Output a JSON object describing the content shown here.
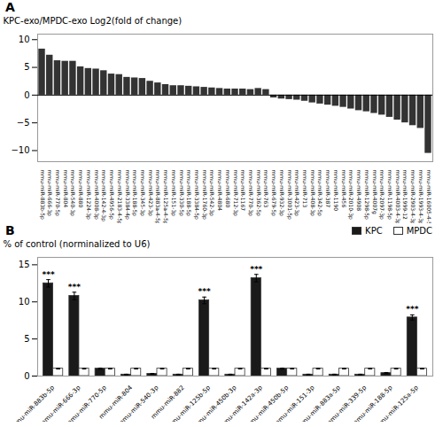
{
  "chart_data": [
    {
      "type": "bar",
      "title": "A",
      "categories": [
        "mmu-miR-883b-5p",
        "mmu-miR-666-3p",
        "mmu-miR-770-5p",
        "mmu-miR-804",
        "mmu-miR-540-3p",
        "mmu-miR-880",
        "mmu-miR-1224-3p",
        "mmu-miR-4008-3p",
        "mmu-miR-142-4-3p",
        "mmu-miR-4956-5p",
        "mmu-miR-2183-4-5p",
        "mmu-miR-3384-4p",
        "mmu-miR-188-5p",
        "mmu-miR-345-3p",
        "mmu-miR-423-3p",
        "mmu-miR-883a-4-5p",
        "mmu-miR-125a-4-5p",
        "mmu-miR-151-3p",
        "mmu-miR-330-5p",
        "mmu-miR-188-5p",
        "mmu-miR-3384-5p",
        "mmu-miR-1760-3p",
        "mmu-miR-542-3p",
        "mmu-miR-4804",
        "mmu-miR-680",
        "mmu-miR-712-3p",
        "mmu-miR-1167",
        "mmu-miR-770-3p",
        "mmu-miR-362-5p",
        "mmu-miR-763",
        "mmu-miR-679-5p",
        "mmu-miR-932-3p",
        "mmu-miR-3001-5p",
        "mmu-miR-423-3p",
        "mmu-miR-713",
        "mmu-miR-408-3p",
        "mmu-miR-342-5p",
        "mmu-miR-387",
        "mmu-miR-1190",
        "mmu-miR-456",
        "mmu-miR-2010-3p",
        "mmu-miR-4908",
        "mmu-miR-1298-5p",
        "mmu-miR-4007g",
        "mmu-miR-2097-3p",
        "mmu-miR-1198-5p",
        "mmu-miR-4003-4-3p",
        "mmu-miR-1999-12",
        "mmu-miR-2903-4-3p",
        "mmu-miR-1993-4-3p",
        "mmu-miR-16005-4-5p"
      ],
      "values": [
        8.3,
        7.2,
        6.2,
        6.1,
        6.1,
        5.1,
        4.8,
        4.7,
        4.4,
        3.8,
        3.7,
        3.2,
        3.1,
        3.0,
        2.5,
        2.2,
        1.9,
        1.7,
        1.7,
        1.6,
        1.5,
        1.4,
        1.3,
        1.2,
        1.1,
        1.1,
        1.1,
        1.0,
        1.2,
        1.0,
        -0.5,
        -0.7,
        -0.8,
        -0.9,
        -1.1,
        -1.4,
        -1.6,
        -1.8,
        -2.0,
        -2.2,
        -2.5,
        -2.8,
        -3.0,
        -3.3,
        -3.6,
        -4.0,
        -4.5,
        -5.0,
        -5.5,
        -6.0,
        -10.5
      ],
      "color": "#333333",
      "ylabel": "KPC-exo/MPDC-exo Log2(fold of change)",
      "ylim": [
        -12,
        11
      ],
      "yticks": [
        -10,
        -5,
        0,
        5,
        10
      ]
    },
    {
      "type": "bar",
      "title": "B",
      "categories": [
        "mmu-miR-883b-5p",
        "mmu-miR-666-3p",
        "mmu-miR-770-5p",
        "mmu-miR-804",
        "mmu-miR-540-3p",
        "mmu-miR-882",
        "mmu-miR-125b-5p",
        "mmu-miR-450b-3p",
        "mmu-miR-142a-3p",
        "mmu-miR-450b-5p",
        "mmu-miR-151-3p",
        "mmu-miR-883a-5p",
        "mmu-miR-339-5p",
        "mmu-miR-188-5p",
        "mmu-miR-125a-5p"
      ],
      "series": [
        {
          "name": "KPC",
          "color": "#1a1a1a",
          "values": [
            12.5,
            10.8,
            1.0,
            0.2,
            0.3,
            0.2,
            10.2,
            0.2,
            13.2,
            1.0,
            0.2,
            0.2,
            0.2,
            0.4,
            7.9
          ],
          "errors": [
            0.5,
            0.5,
            0.08,
            0.05,
            0.05,
            0.05,
            0.45,
            0.05,
            0.5,
            0.08,
            0.05,
            0.05,
            0.05,
            0.08,
            0.35
          ]
        },
        {
          "name": "MPDC",
          "color": "#ffffff",
          "values": [
            1.0,
            1.0,
            1.0,
            1.0,
            1.0,
            1.0,
            1.0,
            1.0,
            1.0,
            1.0,
            1.0,
            1.0,
            1.0,
            1.0,
            1.0
          ],
          "errors": [
            0.05,
            0.05,
            0.05,
            0.05,
            0.05,
            0.05,
            0.05,
            0.05,
            0.05,
            0.05,
            0.05,
            0.05,
            0.05,
            0.05,
            0.05
          ]
        }
      ],
      "annotations": [
        {
          "category": "mmu-miR-883b-5p",
          "series": "KPC",
          "text": "***"
        },
        {
          "category": "mmu-miR-666-3p",
          "series": "KPC",
          "text": "***"
        },
        {
          "category": "mmu-miR-125b-5p",
          "series": "KPC",
          "text": "***"
        },
        {
          "category": "mmu-miR-142a-3p",
          "series": "KPC",
          "text": "***"
        },
        {
          "category": "mmu-miR-125a-5p",
          "series": "KPC",
          "text": "***"
        }
      ],
      "ylabel": "% of control (norminalized to U6)",
      "ylim": [
        0,
        16
      ],
      "yticks": [
        0,
        5,
        10,
        15
      ],
      "legend": "upper right"
    }
  ]
}
